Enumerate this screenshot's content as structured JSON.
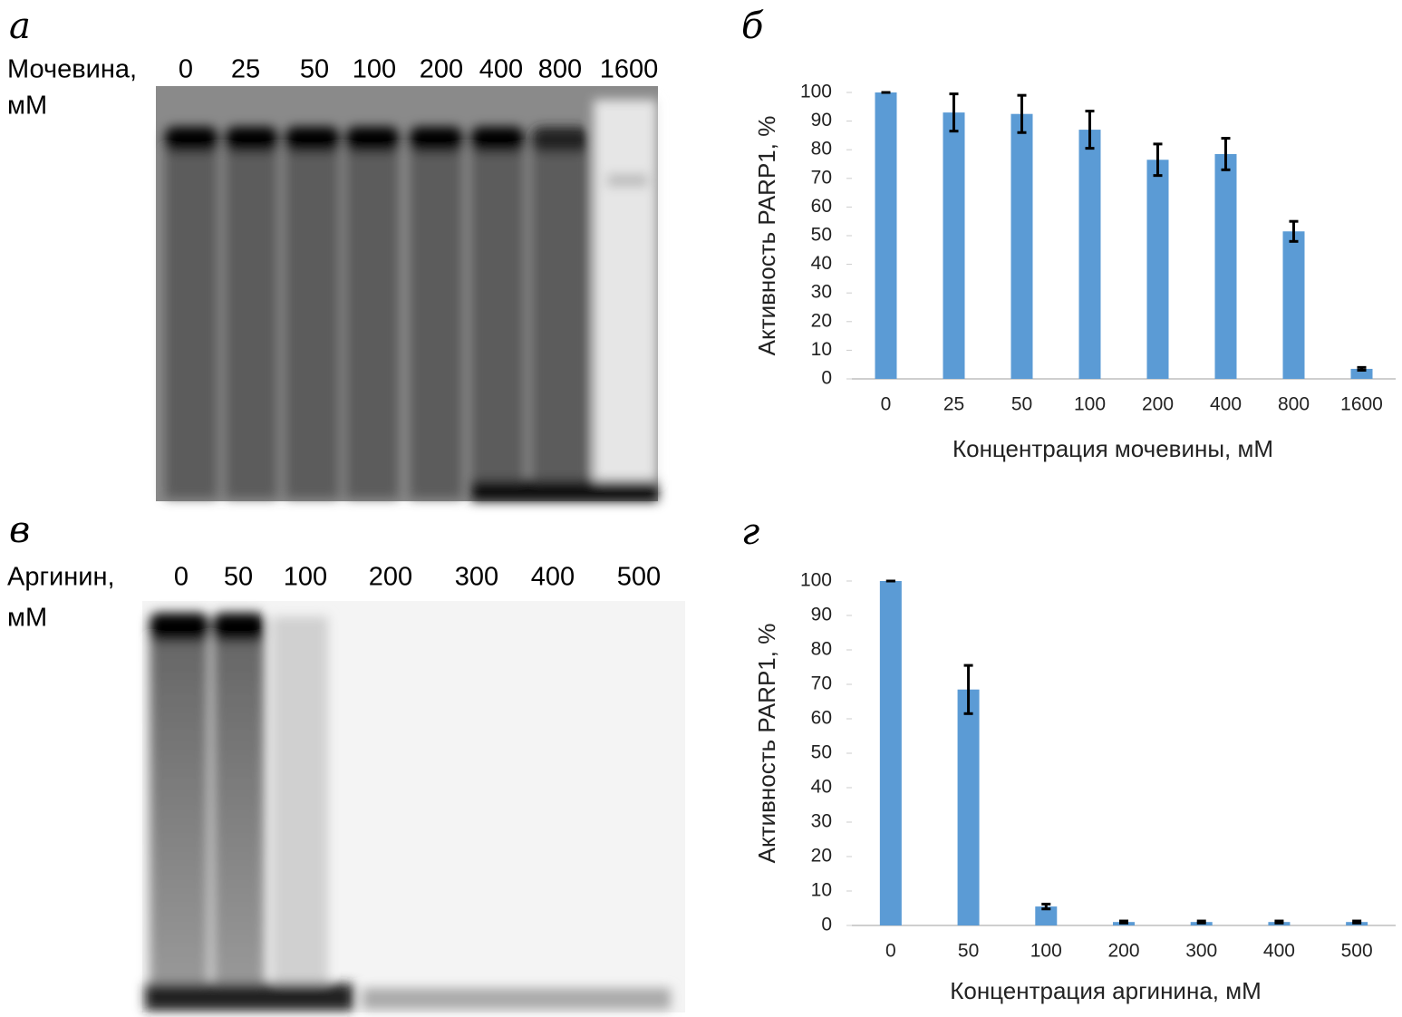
{
  "gels": [
    {
      "letter": "а",
      "label": [
        "Мочевина,",
        "мМ"
      ],
      "lanes": [
        "0",
        "25",
        "50",
        "100",
        "200",
        "400",
        "800",
        "1600"
      ]
    },
    {
      "letter": "в",
      "label": [
        "Аргинин,",
        "мМ"
      ],
      "lanes": [
        "0",
        "50",
        "100",
        "200",
        "300",
        "400",
        "500"
      ]
    }
  ],
  "chart_data": [
    {
      "type": "bar",
      "letter": "б",
      "ylabel": "Активность PARP1, %",
      "xlabel": "Концентрация мочевины, мМ",
      "categories": [
        "0",
        "25",
        "50",
        "100",
        "200",
        "400",
        "800",
        "1600"
      ],
      "values": [
        100,
        93,
        92.5,
        87,
        76.5,
        78.5,
        51.5,
        3.5
      ],
      "errors": [
        0,
        6.5,
        6.5,
        6.5,
        5.5,
        5.5,
        3.5,
        0.5
      ],
      "color": "#5b9bd5",
      "ylim": [
        0,
        100
      ],
      "yticks": [
        0,
        10,
        20,
        30,
        40,
        50,
        60,
        70,
        80,
        90,
        100
      ]
    },
    {
      "type": "bar",
      "letter": "г",
      "ylabel": "Активность PARP1, %",
      "xlabel": "Концентрация аргинина, мМ",
      "categories": [
        "0",
        "50",
        "100",
        "200",
        "300",
        "400",
        "500"
      ],
      "values": [
        100,
        68.5,
        5.5,
        1,
        1,
        1,
        1
      ],
      "errors": [
        0,
        7,
        0.7,
        0.3,
        0.3,
        0.3,
        0.3
      ],
      "color": "#5b9bd5",
      "ylim": [
        0,
        100
      ],
      "yticks": [
        0,
        10,
        20,
        30,
        40,
        50,
        60,
        70,
        80,
        90,
        100
      ]
    }
  ]
}
